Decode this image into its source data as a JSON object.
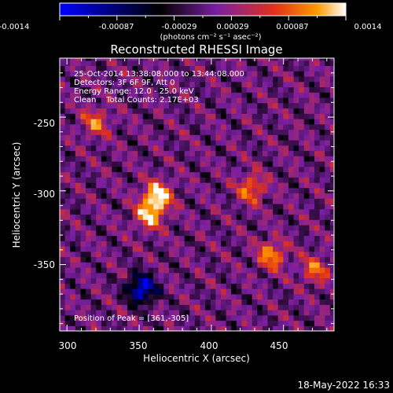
{
  "colorbar": {
    "tick_labels": [
      "-0.0014",
      "-0.00087",
      "-0.00029",
      "0.00029",
      "0.00087",
      "0.0014"
    ],
    "unit_label": "(photons cm⁻² s⁻¹ asec⁻²)",
    "colors": [
      "#0000ff",
      "#000000",
      "#7a1fa0",
      "#e0301a",
      "#ff9a00",
      "#ffffff"
    ]
  },
  "footer": {
    "timestamp": "18-May-2022 16:33"
  },
  "chart_data": {
    "type": "heatmap",
    "title": "Reconstructed RHESSI Image",
    "xlabel": "Heliocentric X (arcsec)",
    "ylabel": "Heliocentric Y (arcsec)",
    "xlim": [
      295,
      485
    ],
    "ylim": [
      -395,
      -210
    ],
    "x_ticks": [
      300,
      350,
      400,
      450
    ],
    "y_ticks": [
      -250,
      -300,
      -350
    ],
    "zlim": [
      -0.0014,
      0.0014
    ],
    "annotations": [
      "25-Oct-2014 13:38:08.000 to 13:44:08.000",
      "Detectors: 3F 6F 9F, Att 0",
      "Energy Range: 12.0 - 25.0 keV",
      "Clean    Total Counts: 2.17E+03"
    ],
    "peak_label": "Position of Peak = [361,-305]",
    "peak": {
      "x": 361,
      "y": -305
    },
    "features": [
      {
        "x": 361,
        "y": -305,
        "value": 0.0014
      },
      {
        "x": 355,
        "y": -318,
        "value": 0.0011
      },
      {
        "x": 440,
        "y": -345,
        "value": 0.001
      },
      {
        "x": 426,
        "y": -300,
        "value": 0.0009
      },
      {
        "x": 318,
        "y": -255,
        "value": 0.0008
      },
      {
        "x": 470,
        "y": -355,
        "value": 0.0008
      },
      {
        "x": 350,
        "y": -368,
        "value": -0.0014
      }
    ]
  }
}
